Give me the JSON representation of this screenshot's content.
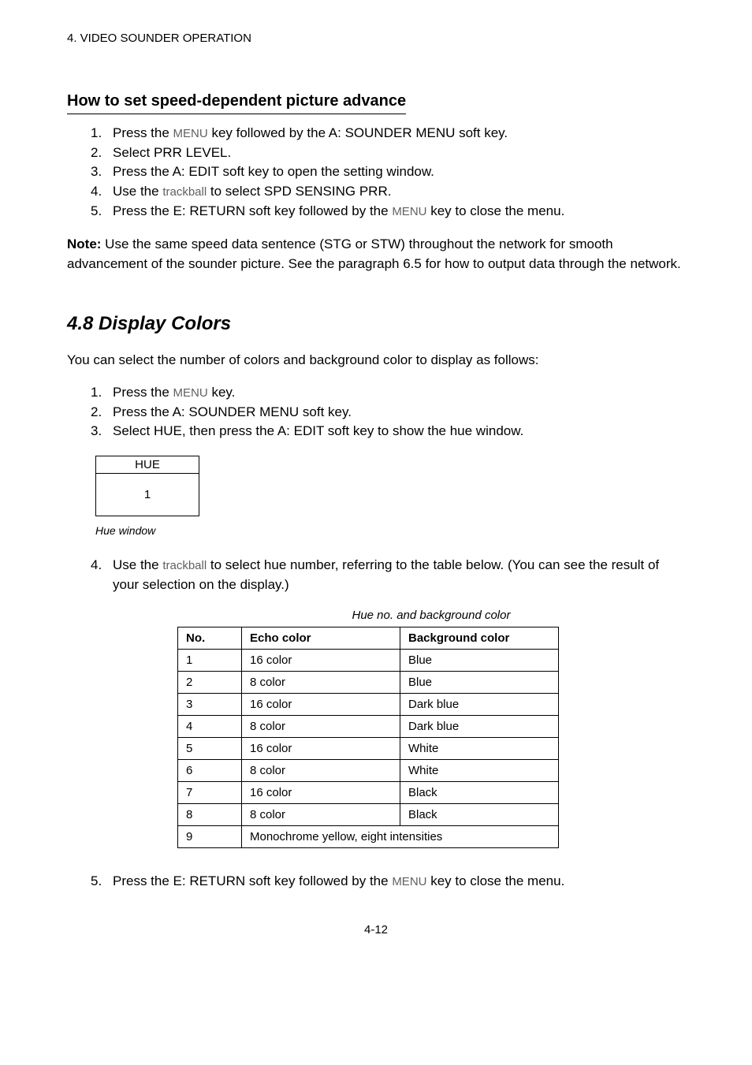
{
  "header": "4. VIDEO SOUNDER OPERATION",
  "sectionA": {
    "title": "How to set speed-dependent picture advance",
    "steps": [
      {
        "pre": "Press the ",
        "key": "MENU",
        "post": " key followed by the A: SOUNDER MENU soft key."
      },
      {
        "pre": "Select PRR LEVEL.",
        "key": "",
        "post": ""
      },
      {
        "pre": "Press the A: EDIT soft key to open the setting window.",
        "key": "",
        "post": ""
      },
      {
        "pre": "Use the ",
        "key": "trackball",
        "post": " to select SPD SENSING PRR."
      },
      {
        "pre": "Press the E: RETURN soft key followed by the ",
        "key": "MENU",
        "post": " key to close the menu."
      }
    ]
  },
  "note": {
    "label": "Note:",
    "text": " Use the same speed data sentence (STG or STW) throughout the network for smooth advancement of the sounder picture. See the paragraph 6.5 for how to output data through the network."
  },
  "sectionB": {
    "heading": "4.8 Display Colors",
    "intro": "You can select the number of colors and background color to display as follows:",
    "steps1": [
      {
        "pre": "Press the ",
        "key": "MENU",
        "post": " key."
      },
      {
        "pre": "Press the A: SOUNDER MENU soft key.",
        "key": "",
        "post": ""
      },
      {
        "pre": "Select HUE, then press the A: EDIT soft key to show the hue window.",
        "key": "",
        "post": ""
      }
    ],
    "hueBox": {
      "title": "HUE",
      "value": "1"
    },
    "hueCaption": "Hue window",
    "step4": {
      "num": "4.",
      "pre": "Use the ",
      "key": "trackball",
      "post": " to select hue number, referring to the table below. (You can see the result of your selection on the display.)"
    },
    "tableTitle": "Hue no. and background color",
    "tableHeaders": {
      "no": "No.",
      "echo": "Echo color",
      "bg": "Background color"
    },
    "tableRows": [
      {
        "no": "1",
        "echo": "16 color",
        "bg": "Blue"
      },
      {
        "no": "2",
        "echo": "8 color",
        "bg": "Blue"
      },
      {
        "no": "3",
        "echo": "16 color",
        "bg": "Dark blue"
      },
      {
        "no": "4",
        "echo": "8 color",
        "bg": "Dark blue"
      },
      {
        "no": "5",
        "echo": "16 color",
        "bg": "White"
      },
      {
        "no": "6",
        "echo": "8 color",
        "bg": "White"
      },
      {
        "no": "7",
        "echo": "16 color",
        "bg": "Black"
      },
      {
        "no": "8",
        "echo": "8 color",
        "bg": "Black"
      },
      {
        "no": "9",
        "echo": "Monochrome yellow, eight intensities",
        "bg": ""
      }
    ],
    "step5": {
      "num": "5.",
      "pre": "Press the E: RETURN soft key followed by the ",
      "key": "MENU",
      "post": " key to close the menu."
    }
  },
  "pageNumber": "4-12"
}
